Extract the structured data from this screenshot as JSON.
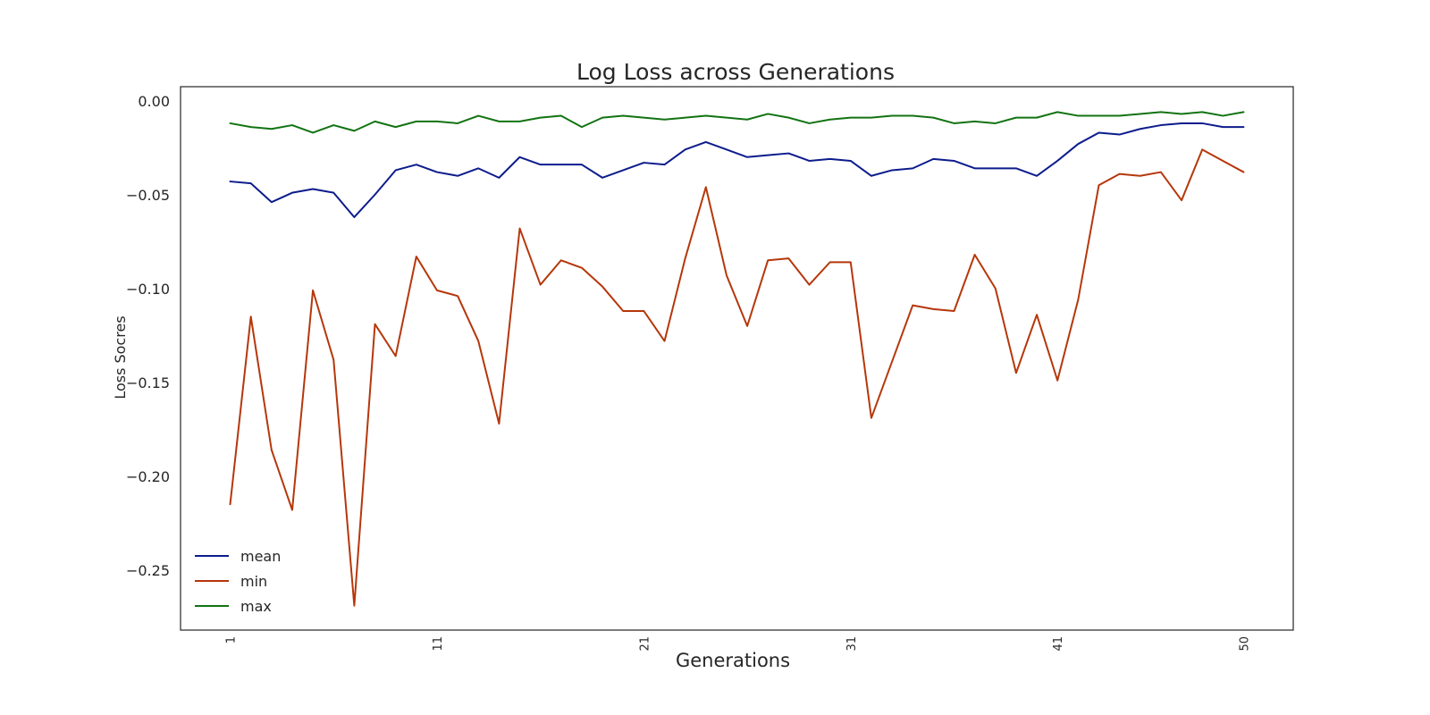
{
  "chart_data": {
    "type": "line",
    "title": "Log Loss across Generations",
    "xlabel": "Generations",
    "ylabel": "Loss Socres",
    "x": [
      1,
      2,
      3,
      4,
      5,
      6,
      7,
      8,
      9,
      10,
      11,
      12,
      13,
      14,
      15,
      16,
      17,
      18,
      19,
      20,
      21,
      22,
      23,
      24,
      25,
      26,
      27,
      28,
      29,
      30,
      31,
      32,
      33,
      34,
      35,
      36,
      37,
      38,
      39,
      40,
      41,
      42,
      43,
      44,
      45,
      46,
      47,
      48,
      49,
      50
    ],
    "xticks": [
      1,
      11,
      21,
      31,
      41,
      50
    ],
    "xtick_labels": [
      "1",
      "11",
      "21",
      "31",
      "41",
      "50"
    ],
    "xlim": [
      -1.4,
      52.4
    ],
    "yticks": [
      0.0,
      -0.05,
      -0.1,
      -0.15,
      -0.2,
      -0.25
    ],
    "ytick_labels": [
      "0.00",
      "−0.05",
      "−0.10",
      "−0.15",
      "−0.20",
      "−0.25"
    ],
    "ylim": [
      -0.282,
      0.0075
    ],
    "grid": false,
    "legend_position": "lower-left",
    "series": [
      {
        "name": "mean",
        "color": "#0c1c8c",
        "values": [
          -0.043,
          -0.044,
          -0.054,
          -0.049,
          -0.047,
          -0.049,
          -0.062,
          -0.05,
          -0.037,
          -0.034,
          -0.038,
          -0.04,
          -0.036,
          -0.041,
          -0.03,
          -0.034,
          -0.034,
          -0.034,
          -0.041,
          -0.037,
          -0.033,
          -0.034,
          -0.026,
          -0.022,
          -0.026,
          -0.03,
          -0.029,
          -0.028,
          -0.032,
          -0.031,
          -0.032,
          -0.04,
          -0.037,
          -0.036,
          -0.031,
          -0.032,
          -0.036,
          -0.036,
          -0.036,
          -0.04,
          -0.032,
          -0.023,
          -0.017,
          -0.018,
          -0.015,
          -0.013,
          -0.012,
          -0.012,
          -0.014,
          -0.014
        ]
      },
      {
        "name": "min",
        "color": "#b5370b",
        "values": [
          -0.215,
          -0.115,
          -0.186,
          -0.218,
          -0.101,
          -0.138,
          -0.269,
          -0.119,
          -0.136,
          -0.083,
          -0.101,
          -0.104,
          -0.128,
          -0.172,
          -0.068,
          -0.098,
          -0.085,
          -0.089,
          -0.099,
          -0.112,
          -0.112,
          -0.128,
          -0.084,
          -0.046,
          -0.093,
          -0.12,
          -0.085,
          -0.084,
          -0.098,
          -0.086,
          -0.086,
          -0.169,
          -0.139,
          -0.109,
          -0.111,
          -0.112,
          -0.082,
          -0.1,
          -0.145,
          -0.114,
          -0.149,
          -0.106,
          -0.045,
          -0.039,
          -0.04,
          -0.038,
          -0.053,
          -0.026,
          -0.032,
          -0.038
        ]
      },
      {
        "name": "max",
        "color": "#127312",
        "values": [
          -0.012,
          -0.014,
          -0.015,
          -0.013,
          -0.017,
          -0.013,
          -0.016,
          -0.011,
          -0.014,
          -0.011,
          -0.011,
          -0.012,
          -0.008,
          -0.011,
          -0.011,
          -0.009,
          -0.008,
          -0.014,
          -0.009,
          -0.008,
          -0.009,
          -0.01,
          -0.009,
          -0.008,
          -0.009,
          -0.01,
          -0.007,
          -0.009,
          -0.012,
          -0.01,
          -0.009,
          -0.009,
          -0.008,
          -0.008,
          -0.009,
          -0.012,
          -0.011,
          -0.012,
          -0.009,
          -0.009,
          -0.006,
          -0.008,
          -0.008,
          -0.008,
          -0.007,
          -0.006,
          -0.007,
          -0.006,
          -0.008,
          -0.006
        ]
      }
    ]
  }
}
